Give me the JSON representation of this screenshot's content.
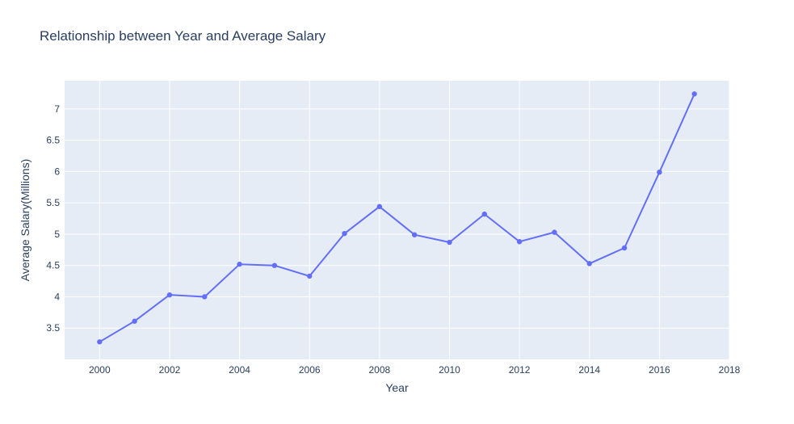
{
  "chart_data": {
    "type": "line",
    "title": "Relationship between Year and Average Salary",
    "xlabel": "Year",
    "ylabel": "Average Salary(Millions)",
    "xlim": [
      1999,
      2018
    ],
    "ylim": [
      3.0,
      7.45
    ],
    "xticks": [
      2000,
      2002,
      2004,
      2006,
      2008,
      2010,
      2012,
      2014,
      2016,
      2018
    ],
    "xtick_labels": [
      "2000",
      "2002",
      "2004",
      "2006",
      "2008",
      "2010",
      "2012",
      "2014",
      "2016",
      "2018"
    ],
    "yticks": [
      3.5,
      4,
      4.5,
      5,
      5.5,
      6,
      6.5,
      7
    ],
    "ytick_labels": [
      "3.5",
      "4",
      "4.5",
      "5",
      "5.5",
      "6",
      "6.5",
      "7"
    ],
    "grid": true,
    "mode": "lines+markers",
    "series": [
      {
        "color": "#636efa",
        "x": [
          2000,
          2001,
          2002,
          2003,
          2004,
          2005,
          2006,
          2007,
          2008,
          2009,
          2010,
          2011,
          2012,
          2013,
          2014,
          2015,
          2016,
          2017
        ],
        "y": [
          3.28,
          3.61,
          4.03,
          4.0,
          4.52,
          4.5,
          4.33,
          5.01,
          5.44,
          4.99,
          4.87,
          5.32,
          4.88,
          5.03,
          4.53,
          4.78,
          5.99,
          7.24
        ]
      }
    ],
    "colors": {
      "plot_bg": "#e5ecf6",
      "grid": "#ffffff",
      "text": "#2a3f5f",
      "paper_bg": "#ffffff"
    }
  }
}
